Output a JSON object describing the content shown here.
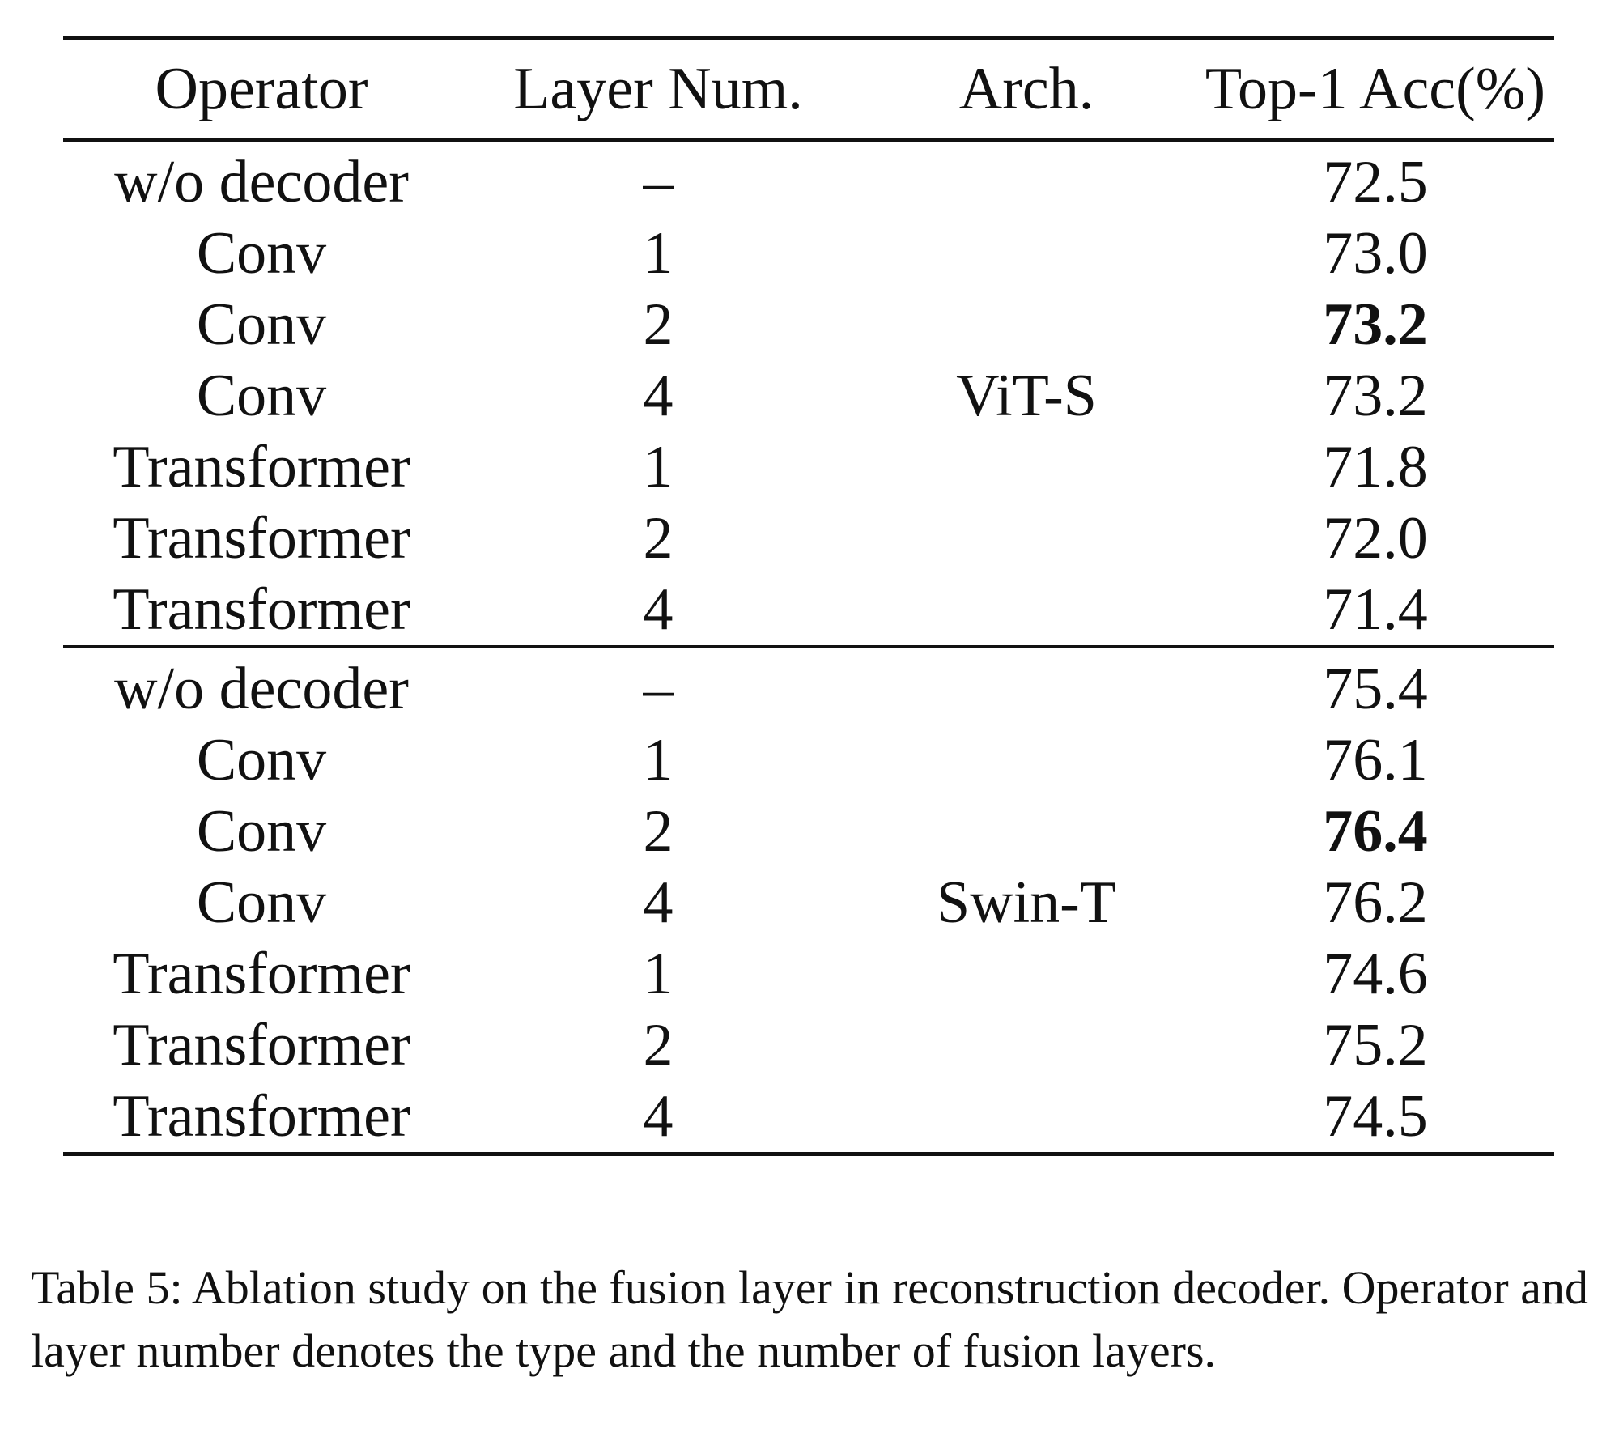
{
  "table": {
    "headers": {
      "operator": "Operator",
      "layer_num": "Layer Num.",
      "arch": "Arch.",
      "top1": "Top-1 Acc(%)"
    },
    "sections": [
      {
        "arch": "ViT-S",
        "rows": [
          {
            "operator": "w/o decoder",
            "layer_num": "–",
            "top1": "72.5",
            "bold": false
          },
          {
            "operator": "Conv",
            "layer_num": "1",
            "top1": "73.0",
            "bold": false
          },
          {
            "operator": "Conv",
            "layer_num": "2",
            "top1": "73.2",
            "bold": true
          },
          {
            "operator": "Conv",
            "layer_num": "4",
            "top1": "73.2",
            "bold": false
          },
          {
            "operator": "Transformer",
            "layer_num": "1",
            "top1": "71.8",
            "bold": false
          },
          {
            "operator": "Transformer",
            "layer_num": "2",
            "top1": "72.0",
            "bold": false
          },
          {
            "operator": "Transformer",
            "layer_num": "4",
            "top1": "71.4",
            "bold": false
          }
        ]
      },
      {
        "arch": "Swin-T",
        "rows": [
          {
            "operator": "w/o decoder",
            "layer_num": "–",
            "top1": "75.4",
            "bold": false
          },
          {
            "operator": "Conv",
            "layer_num": "1",
            "top1": "76.1",
            "bold": false
          },
          {
            "operator": "Conv",
            "layer_num": "2",
            "top1": "76.4",
            "bold": true
          },
          {
            "operator": "Conv",
            "layer_num": "4",
            "top1": "76.2",
            "bold": false
          },
          {
            "operator": "Transformer",
            "layer_num": "1",
            "top1": "74.6",
            "bold": false
          },
          {
            "operator": "Transformer",
            "layer_num": "2",
            "top1": "75.2",
            "bold": false
          },
          {
            "operator": "Transformer",
            "layer_num": "4",
            "top1": "74.5",
            "bold": false
          }
        ]
      }
    ]
  },
  "caption": "Table 5: Ablation study on the fusion layer in reconstruction decoder. Operator and layer number denotes the type and the number of fusion layers."
}
